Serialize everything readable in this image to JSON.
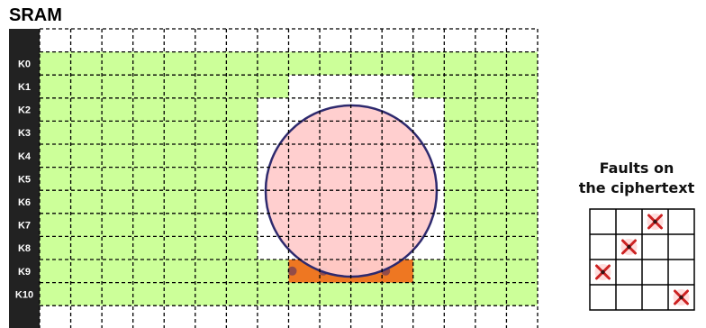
{
  "title": "SRAM",
  "rows": [
    "K0",
    "K1",
    "K2",
    "K3",
    "K4",
    "K5",
    "K6",
    "K7",
    "K8",
    "K9",
    "K10"
  ],
  "fault_cols": 16,
  "legend": {
    "line1": "Faults on",
    "line2": "the ciphertext"
  },
  "faults_grid": {
    "rows": 4,
    "cols": 4,
    "marks": [
      [
        0,
        2
      ],
      [
        1,
        1
      ],
      [
        2,
        0
      ],
      [
        3,
        3
      ]
    ]
  },
  "colors": {
    "cell": "#ccff99",
    "laser": "#ffcccc",
    "laser_edge": "#2e2a6e",
    "hit": "#ee7722",
    "label_bg": "#222222",
    "mark": "#cc2222"
  }
}
